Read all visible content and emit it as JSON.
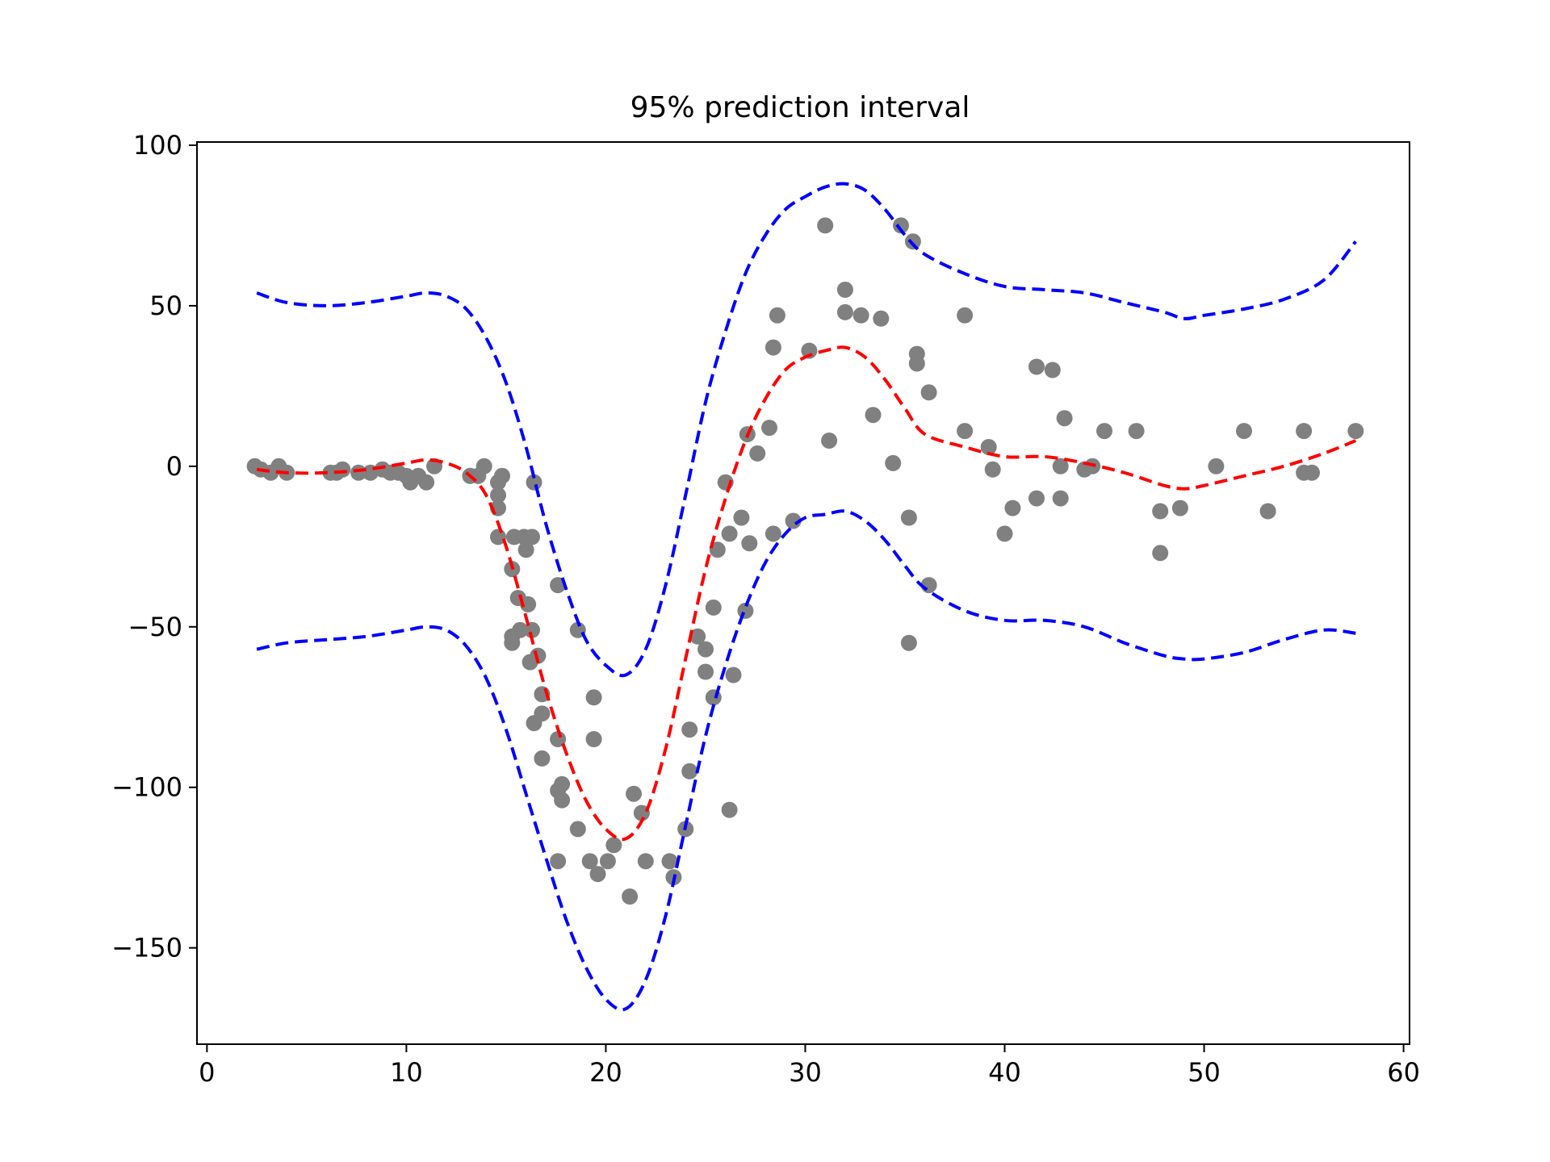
{
  "chart_data": {
    "type": "scatter",
    "title": "95% prediction interval",
    "xlabel": "",
    "ylabel": "",
    "xlim": [
      -0.5,
      60.3
    ],
    "ylim": [
      -180,
      101
    ],
    "xticks": [
      0,
      10,
      20,
      30,
      40,
      50,
      60
    ],
    "yticks": [
      100,
      50,
      0,
      -50,
      -100,
      -150
    ],
    "xtick_labels": [
      "0",
      "10",
      "20",
      "30",
      "40",
      "50",
      "60"
    ],
    "ytick_labels": [
      "100",
      "50",
      "0",
      "−50",
      "−100",
      "−150"
    ],
    "grid": false,
    "colors": {
      "points": "#808080",
      "mean": "#ff0000",
      "bounds": "#0000ff"
    },
    "points": [
      [
        2.4,
        0
      ],
      [
        2.7,
        -1
      ],
      [
        3.2,
        -2
      ],
      [
        3.6,
        0
      ],
      [
        4.0,
        -2
      ],
      [
        6.2,
        -2
      ],
      [
        6.5,
        -2
      ],
      [
        6.8,
        -1
      ],
      [
        7.6,
        -2
      ],
      [
        8.2,
        -2
      ],
      [
        8.8,
        -1
      ],
      [
        9.2,
        -2
      ],
      [
        9.6,
        -2
      ],
      [
        10.0,
        -3
      ],
      [
        10.2,
        -5
      ],
      [
        10.6,
        -3
      ],
      [
        11.0,
        -5
      ],
      [
        11.4,
        0
      ],
      [
        13.2,
        -3
      ],
      [
        13.6,
        -3
      ],
      [
        13.9,
        0
      ],
      [
        14.6,
        -5
      ],
      [
        14.6,
        -9
      ],
      [
        14.6,
        -13
      ],
      [
        14.6,
        -22
      ],
      [
        14.8,
        -3
      ],
      [
        15.3,
        -32
      ],
      [
        15.3,
        -53
      ],
      [
        15.3,
        -55
      ],
      [
        15.4,
        -22
      ],
      [
        15.6,
        -41
      ],
      [
        15.7,
        -51
      ],
      [
        15.9,
        -22
      ],
      [
        16.0,
        -26
      ],
      [
        16.1,
        -43
      ],
      [
        16.2,
        -61
      ],
      [
        16.3,
        -22
      ],
      [
        16.3,
        -51
      ],
      [
        16.4,
        -5
      ],
      [
        16.4,
        -80
      ],
      [
        16.6,
        -59
      ],
      [
        16.8,
        -71
      ],
      [
        16.8,
        -77
      ],
      [
        16.8,
        -91
      ],
      [
        17.6,
        -37
      ],
      [
        17.6,
        -85
      ],
      [
        17.6,
        -101
      ],
      [
        17.6,
        -123
      ],
      [
        17.8,
        -104
      ],
      [
        17.8,
        -99
      ],
      [
        18.6,
        -51
      ],
      [
        18.6,
        -113
      ],
      [
        19.2,
        -123
      ],
      [
        19.4,
        -72
      ],
      [
        19.4,
        -85
      ],
      [
        19.6,
        -127
      ],
      [
        20.1,
        -123
      ],
      [
        20.4,
        -118
      ],
      [
        21.2,
        -134
      ],
      [
        21.4,
        -102
      ],
      [
        21.8,
        -108
      ],
      [
        22.0,
        -123
      ],
      [
        23.2,
        -123
      ],
      [
        23.4,
        -128
      ],
      [
        24.0,
        -113
      ],
      [
        24.2,
        -82
      ],
      [
        24.2,
        -95
      ],
      [
        24.6,
        -53
      ],
      [
        25.0,
        -64
      ],
      [
        25.0,
        -57
      ],
      [
        25.4,
        -72
      ],
      [
        25.4,
        -44
      ],
      [
        25.6,
        -26
      ],
      [
        26.0,
        -5
      ],
      [
        26.2,
        -107
      ],
      [
        26.2,
        -21
      ],
      [
        26.4,
        -65
      ],
      [
        26.8,
        -16
      ],
      [
        27.0,
        -45
      ],
      [
        27.1,
        10
      ],
      [
        27.2,
        -24
      ],
      [
        27.6,
        4
      ],
      [
        28.2,
        12
      ],
      [
        28.4,
        37
      ],
      [
        28.4,
        -21
      ],
      [
        28.6,
        47
      ],
      [
        29.4,
        -17
      ],
      [
        30.2,
        36
      ],
      [
        31.0,
        75
      ],
      [
        31.2,
        8
      ],
      [
        32.0,
        55
      ],
      [
        32.0,
        48
      ],
      [
        32.8,
        47
      ],
      [
        33.4,
        16
      ],
      [
        33.8,
        46
      ],
      [
        34.4,
        1
      ],
      [
        34.8,
        75
      ],
      [
        35.2,
        -55
      ],
      [
        35.2,
        -16
      ],
      [
        35.4,
        70
      ],
      [
        35.6,
        35
      ],
      [
        35.6,
        32
      ],
      [
        36.2,
        23
      ],
      [
        36.2,
        -37
      ],
      [
        38.0,
        11
      ],
      [
        38.0,
        47
      ],
      [
        39.2,
        6
      ],
      [
        39.4,
        -1
      ],
      [
        40.0,
        -21
      ],
      [
        40.4,
        -13
      ],
      [
        41.6,
        31
      ],
      [
        41.6,
        -10
      ],
      [
        42.4,
        30
      ],
      [
        42.8,
        0
      ],
      [
        42.8,
        -10
      ],
      [
        43.0,
        15
      ],
      [
        44.0,
        -1
      ],
      [
        44.4,
        0
      ],
      [
        45.0,
        11
      ],
      [
        46.6,
        11
      ],
      [
        47.8,
        -14
      ],
      [
        47.8,
        -27
      ],
      [
        48.8,
        -13
      ],
      [
        50.6,
        0
      ],
      [
        52.0,
        11
      ],
      [
        53.2,
        -14
      ],
      [
        55.0,
        11
      ],
      [
        55.0,
        -2
      ],
      [
        55.4,
        -2
      ],
      [
        57.6,
        11
      ]
    ],
    "series": [
      {
        "name": "mean",
        "style": "dashed",
        "color": "#ff0000",
        "x": [
          2.5,
          4,
          6,
          8,
          10,
          11,
          12,
          13,
          14,
          15,
          16,
          17,
          18,
          19,
          20,
          21,
          22,
          23,
          24,
          25,
          26,
          27,
          28,
          29,
          30,
          31,
          32,
          33,
          34,
          35,
          36,
          38,
          40,
          42,
          44,
          46,
          48,
          49,
          50,
          52,
          54,
          56,
          57.6
        ],
        "y": [
          -1,
          -2,
          -2,
          -1,
          1,
          2,
          1,
          -2,
          -9,
          -25,
          -47,
          -70,
          -89,
          -104,
          -113,
          -116,
          -108,
          -88,
          -60,
          -32,
          -10,
          8,
          21,
          30,
          34,
          36,
          37,
          34,
          27,
          18,
          10,
          6,
          3,
          3,
          1,
          -2,
          -6,
          -7,
          -6,
          -3,
          0,
          4,
          8
        ]
      },
      {
        "name": "upper bound",
        "style": "dashed",
        "color": "#0000ff",
        "x": [
          2.5,
          4,
          6,
          8,
          10,
          11,
          12,
          13,
          14,
          15,
          16,
          17,
          18,
          19,
          20,
          21,
          22,
          23,
          24,
          25,
          26,
          27,
          28,
          29,
          30,
          31,
          32,
          33,
          34,
          35,
          36,
          38,
          40,
          42,
          44,
          46,
          48,
          49,
          50,
          52,
          54,
          56,
          57.6
        ],
        "y": [
          54,
          51,
          50,
          51,
          53,
          54,
          53,
          49,
          40,
          26,
          6,
          -18,
          -38,
          -54,
          -62,
          -65,
          -57,
          -37,
          -9,
          20,
          42,
          60,
          72,
          80,
          84,
          87,
          88,
          86,
          80,
          72,
          66,
          60,
          56,
          55,
          54,
          51,
          48,
          46,
          47,
          49,
          52,
          58,
          70
        ]
      },
      {
        "name": "lower bound",
        "style": "dashed",
        "color": "#0000ff",
        "x": [
          2.5,
          4,
          6,
          8,
          10,
          11,
          12,
          13,
          14,
          15,
          16,
          17,
          18,
          19,
          20,
          21,
          22,
          23,
          24,
          25,
          26,
          27,
          28,
          29,
          30,
          31,
          32,
          33,
          34,
          35,
          36,
          38,
          40,
          42,
          44,
          46,
          48,
          49,
          50,
          52,
          54,
          56,
          57.6
        ],
        "y": [
          -57,
          -55,
          -54,
          -53,
          -51,
          -50,
          -51,
          -56,
          -66,
          -82,
          -102,
          -122,
          -141,
          -156,
          -166,
          -169,
          -160,
          -140,
          -112,
          -84,
          -62,
          -44,
          -30,
          -21,
          -16,
          -15,
          -14,
          -17,
          -23,
          -31,
          -38,
          -45,
          -48,
          -48,
          -50,
          -55,
          -59,
          -60,
          -60,
          -58,
          -54,
          -51,
          -52
        ]
      }
    ]
  }
}
